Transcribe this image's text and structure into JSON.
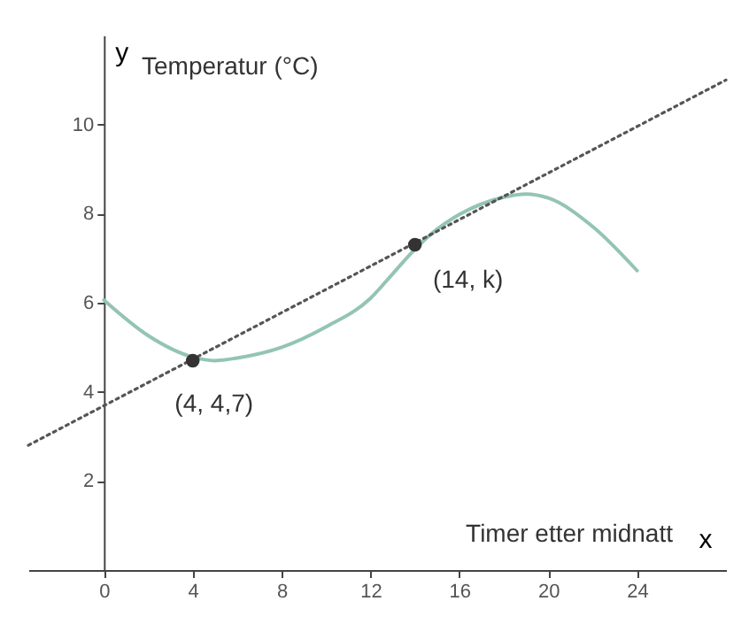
{
  "chart_data": {
    "type": "line",
    "xlabel": "x",
    "ylabel": "y",
    "annotations": [
      "Temperatur (°C)",
      "Timer etter midnatt",
      {
        "text": "(4, 4,7)",
        "x": 4,
        "y": 4.7
      },
      {
        "text": "(14, k)",
        "x": 14,
        "y": 7.3
      }
    ],
    "series": [
      {
        "color": "#93c4b5",
        "x": [
          0,
          2,
          4,
          5,
          6,
          8,
          10,
          12,
          13,
          14,
          15,
          16,
          18,
          19,
          20,
          22,
          24
        ],
        "values": [
          6.06,
          5.26,
          4.78,
          4.7,
          4.76,
          5.0,
          5.46,
          6.1,
          6.65,
          7.2,
          7.65,
          7.98,
          8.37,
          8.44,
          8.35,
          7.71,
          6.72
        ]
      },
      {
        "color": "#555555",
        "line_style": "dotted",
        "x": [
          -3.4,
          28
        ],
        "values": [
          2.8,
          11.0
        ]
      },
      {
        "type": "scatter",
        "color": "#333333",
        "marker": "circle",
        "x": [
          4,
          14
        ],
        "values": [
          4.7,
          7.3
        ]
      }
    ],
    "xlim": [
      -3.4,
      28
    ],
    "ylim": [
      0,
      12
    ],
    "xticks": [
      0,
      4,
      8,
      12,
      16,
      20,
      24
    ],
    "yticks": [
      2,
      4,
      6,
      8,
      10
    ],
    "grid": false
  }
}
